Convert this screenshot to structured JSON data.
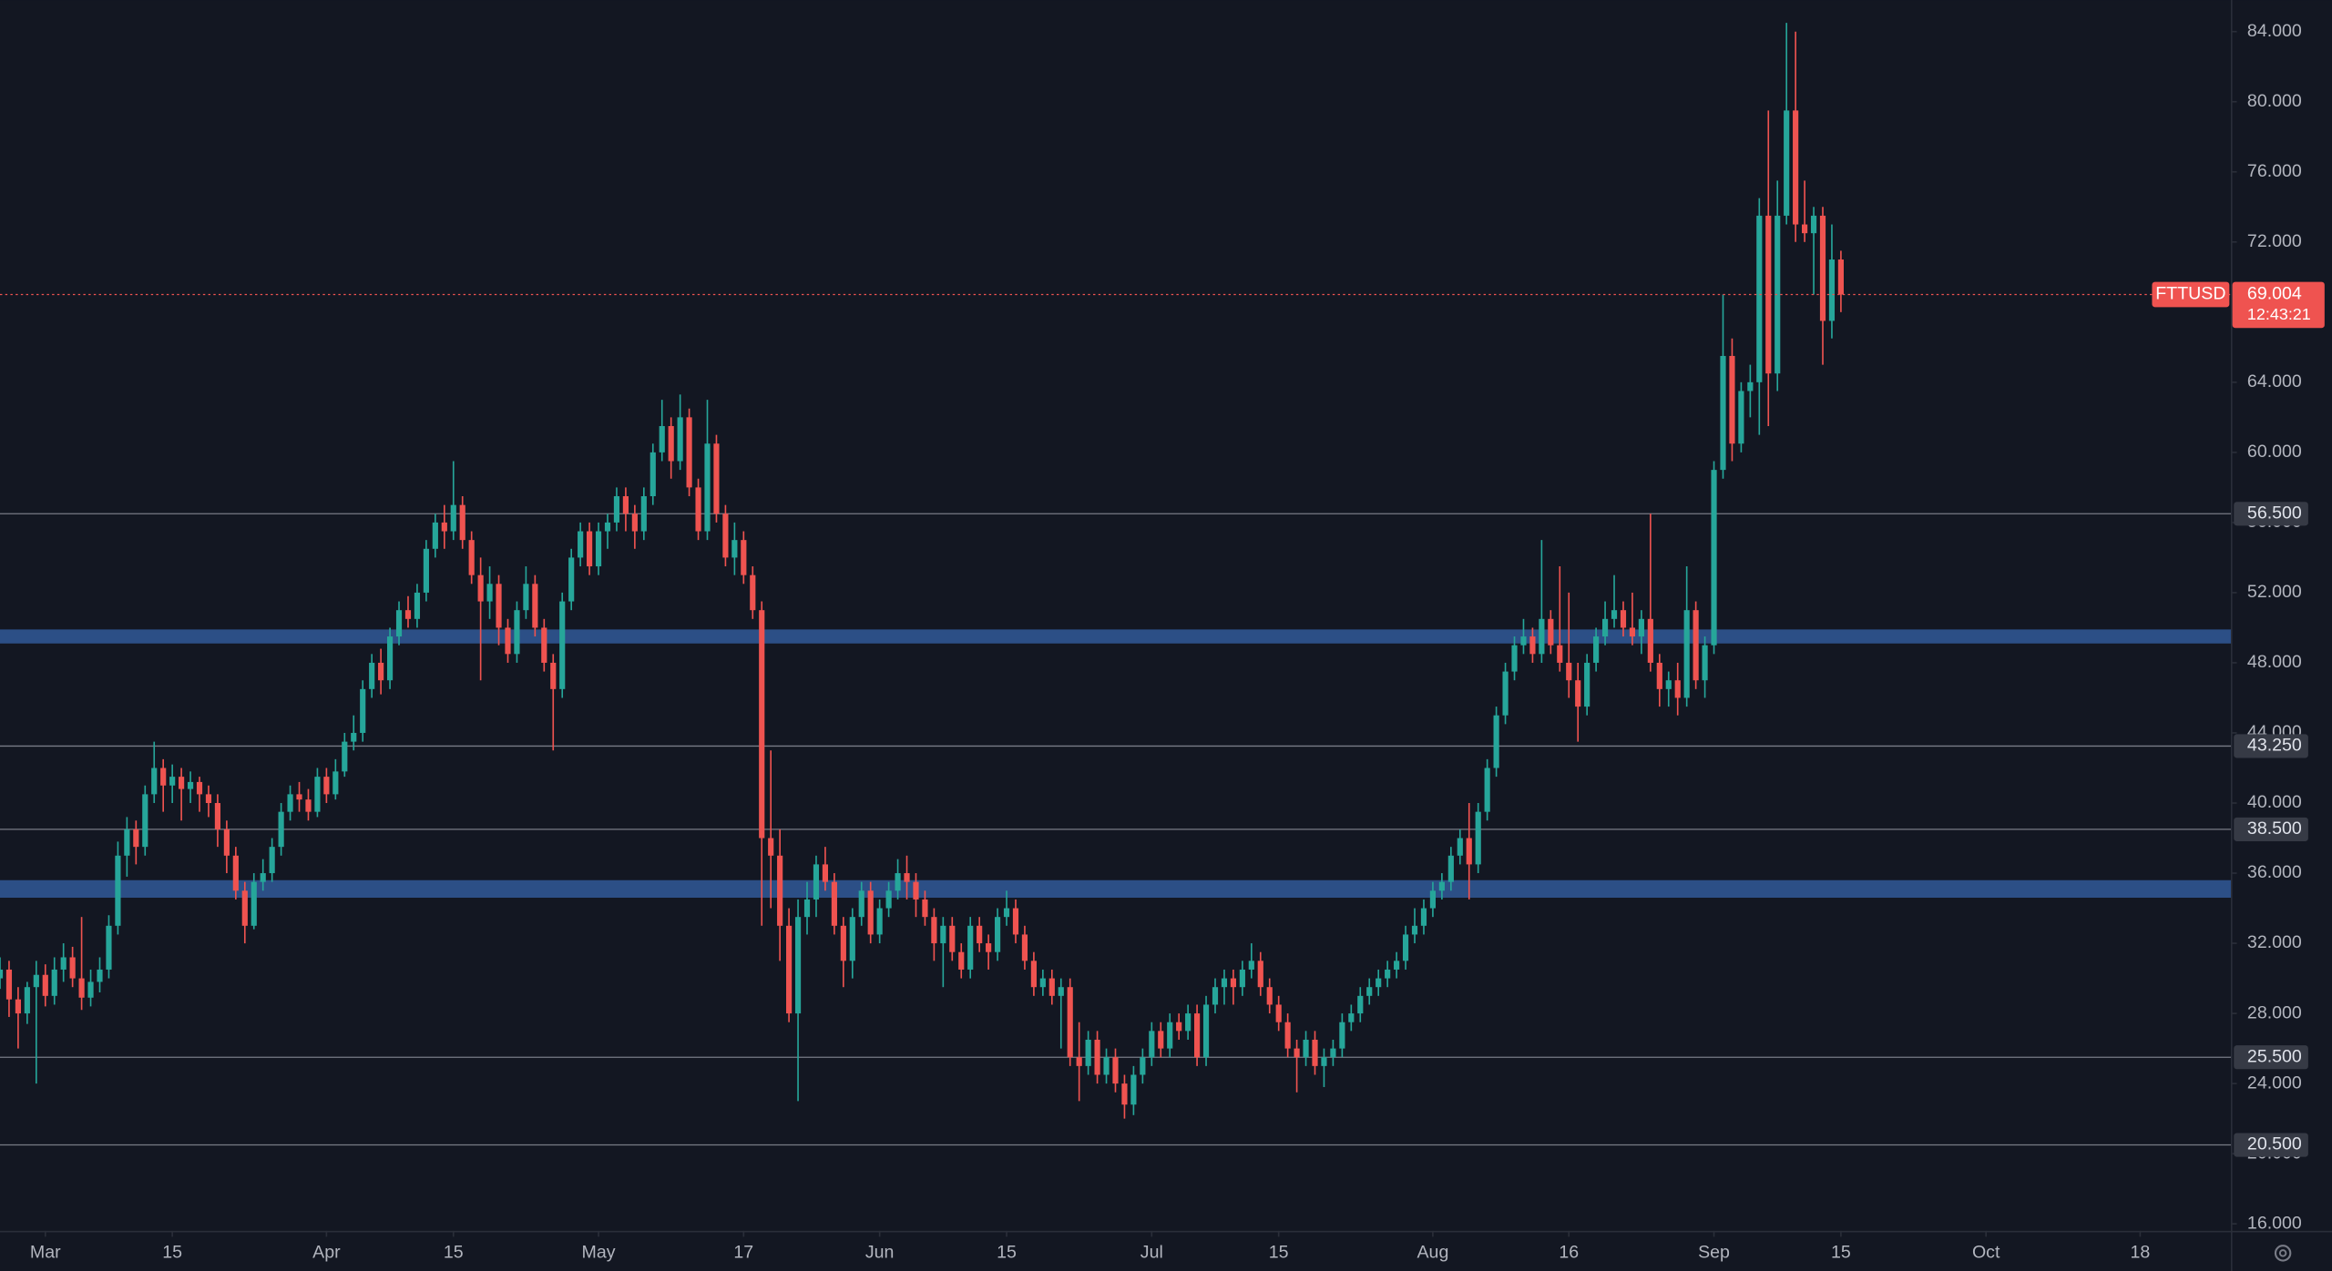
{
  "chart_data": {
    "type": "candlestick",
    "up_color": "#26a69a",
    "down_color": "#ef5350",
    "xlim": [
      -5,
      241
    ],
    "ylim": [
      15.6,
      85.8
    ],
    "xticks": [
      {
        "value": 0,
        "label": "Mar"
      },
      {
        "value": 14,
        "label": "15"
      },
      {
        "value": 31,
        "label": "Apr"
      },
      {
        "value": 45,
        "label": "15"
      },
      {
        "value": 61,
        "label": "May"
      },
      {
        "value": 77,
        "label": "17"
      },
      {
        "value": 92,
        "label": "Jun"
      },
      {
        "value": 106,
        "label": "15"
      },
      {
        "value": 122,
        "label": "Jul"
      },
      {
        "value": 136,
        "label": "15"
      },
      {
        "value": 153,
        "label": "Aug"
      },
      {
        "value": 168,
        "label": "16"
      },
      {
        "value": 184,
        "label": "Sep"
      },
      {
        "value": 198,
        "label": "15"
      },
      {
        "value": 214,
        "label": "Oct"
      },
      {
        "value": 231,
        "label": "18"
      }
    ],
    "yticks": [
      {
        "value": 16,
        "label": "16.000"
      },
      {
        "value": 20,
        "label": "20.000"
      },
      {
        "value": 24,
        "label": "24.000"
      },
      {
        "value": 28,
        "label": "28.000"
      },
      {
        "value": 32,
        "label": "32.000"
      },
      {
        "value": 36,
        "label": "36.000"
      },
      {
        "value": 40,
        "label": "40.000"
      },
      {
        "value": 44,
        "label": "44.000"
      },
      {
        "value": 48,
        "label": "48.000"
      },
      {
        "value": 52,
        "label": "52.000"
      },
      {
        "value": 56,
        "label": "56.000"
      },
      {
        "value": 60,
        "label": "60.000"
      },
      {
        "value": 64,
        "label": "64.000"
      },
      {
        "value": 68,
        "label": "68.000"
      },
      {
        "value": 72,
        "label": "72.000"
      },
      {
        "value": 76,
        "label": "76.000"
      },
      {
        "value": 80,
        "label": "80.000"
      },
      {
        "value": 84,
        "label": "84.000"
      }
    ],
    "levels": [
      56.5,
      43.25,
      38.5,
      25.5,
      20.5
    ],
    "level_labels": [
      "56.500",
      "43.250",
      "38.500",
      "25.500",
      "20.500"
    ],
    "level_color": "#787b86",
    "zones": [
      [
        49.1,
        49.9
      ],
      [
        34.6,
        35.6
      ]
    ],
    "zone_color": "#2c4f86",
    "last_price": {
      "symbol": "FTTUSD",
      "value": 69.004,
      "countdown": "12:43:21",
      "color": "#ef5350"
    },
    "x": [
      -5,
      -4,
      -3,
      -2,
      -1,
      0,
      1,
      2,
      3,
      4,
      5,
      6,
      7,
      8,
      9,
      10,
      11,
      12,
      13,
      14,
      15,
      16,
      17,
      18,
      19,
      20,
      21,
      22,
      23,
      24,
      25,
      26,
      27,
      28,
      29,
      30,
      31,
      32,
      33,
      34,
      35,
      36,
      37,
      38,
      39,
      40,
      41,
      42,
      43,
      44,
      45,
      46,
      47,
      48,
      49,
      50,
      51,
      52,
      53,
      54,
      55,
      56,
      57,
      58,
      59,
      60,
      61,
      62,
      63,
      64,
      65,
      66,
      67,
      68,
      69,
      70,
      71,
      72,
      73,
      74,
      75,
      76,
      77,
      78,
      79,
      80,
      81,
      82,
      83,
      84,
      85,
      86,
      87,
      88,
      89,
      90,
      91,
      92,
      93,
      94,
      95,
      96,
      97,
      98,
      99,
      100,
      101,
      102,
      103,
      104,
      105,
      106,
      107,
      108,
      109,
      110,
      111,
      112,
      113,
      114,
      115,
      116,
      117,
      118,
      119,
      120,
      121,
      122,
      123,
      124,
      125,
      126,
      127,
      128,
      129,
      130,
      131,
      132,
      133,
      134,
      135,
      136,
      137,
      138,
      139,
      140,
      141,
      142,
      143,
      144,
      145,
      146,
      147,
      148,
      149,
      150,
      151,
      152,
      153,
      154,
      155,
      156,
      157,
      158,
      159,
      160,
      161,
      162,
      163,
      164,
      165,
      166,
      167,
      168,
      169,
      170,
      171,
      172,
      173,
      174,
      175,
      176,
      177,
      178,
      179,
      180,
      181,
      182,
      183,
      184,
      185,
      186,
      187,
      188,
      189,
      190,
      191,
      192,
      193,
      194,
      195,
      196,
      197,
      198
    ],
    "ohlc": [
      [
        30.0,
        31.2,
        29.4,
        30.5
      ],
      [
        30.5,
        31.0,
        27.8,
        28.8
      ],
      [
        28.8,
        29.5,
        26.0,
        28.0
      ],
      [
        28.0,
        29.8,
        27.4,
        29.5
      ],
      [
        29.5,
        31.0,
        24.0,
        30.2
      ],
      [
        30.2,
        30.8,
        28.4,
        29.0
      ],
      [
        29.0,
        31.2,
        28.5,
        30.5
      ],
      [
        30.5,
        32.0,
        29.8,
        31.2
      ],
      [
        31.2,
        31.8,
        29.5,
        30.0
      ],
      [
        30.0,
        33.5,
        28.2,
        28.9
      ],
      [
        28.9,
        30.5,
        28.4,
        29.8
      ],
      [
        29.8,
        31.2,
        29.2,
        30.5
      ],
      [
        30.5,
        33.6,
        30.0,
        33.0
      ],
      [
        33.0,
        37.8,
        32.5,
        37.0
      ],
      [
        37.0,
        39.2,
        35.8,
        38.5
      ],
      [
        38.5,
        39.0,
        36.5,
        37.5
      ],
      [
        37.5,
        41.0,
        37.0,
        40.5
      ],
      [
        40.5,
        43.5,
        40.0,
        42.0
      ],
      [
        42.0,
        42.5,
        39.5,
        41.0
      ],
      [
        41.0,
        42.2,
        40.0,
        41.5
      ],
      [
        41.5,
        42.0,
        39.0,
        40.8
      ],
      [
        40.8,
        41.8,
        40.0,
        41.2
      ],
      [
        41.2,
        41.5,
        39.5,
        40.5
      ],
      [
        40.5,
        41.0,
        39.2,
        40.0
      ],
      [
        40.0,
        40.5,
        37.5,
        38.5
      ],
      [
        38.5,
        39.0,
        36.0,
        37.0
      ],
      [
        37.0,
        37.5,
        34.5,
        35.0
      ],
      [
        35.0,
        35.5,
        32.0,
        33.0
      ],
      [
        33.0,
        36.0,
        32.8,
        35.5
      ],
      [
        35.5,
        36.8,
        35.0,
        36.0
      ],
      [
        36.0,
        38.0,
        35.5,
        37.5
      ],
      [
        37.5,
        40.0,
        37.0,
        39.5
      ],
      [
        39.5,
        41.0,
        39.0,
        40.5
      ],
      [
        40.5,
        41.2,
        39.5,
        40.2
      ],
      [
        40.2,
        40.8,
        39.0,
        39.5
      ],
      [
        39.5,
        42.0,
        39.2,
        41.5
      ],
      [
        41.5,
        42.0,
        40.0,
        40.5
      ],
      [
        40.5,
        42.5,
        40.2,
        41.8
      ],
      [
        41.8,
        44.0,
        41.5,
        43.5
      ],
      [
        43.5,
        45.0,
        43.0,
        44.0
      ],
      [
        44.0,
        47.0,
        43.5,
        46.5
      ],
      [
        46.5,
        48.5,
        46.0,
        48.0
      ],
      [
        48.0,
        48.8,
        46.2,
        47.0
      ],
      [
        47.0,
        50.0,
        46.5,
        49.5
      ],
      [
        49.5,
        51.5,
        49.0,
        51.0
      ],
      [
        51.0,
        51.8,
        50.0,
        50.5
      ],
      [
        50.5,
        52.5,
        50.0,
        52.0
      ],
      [
        52.0,
        55.0,
        51.5,
        54.5
      ],
      [
        54.5,
        56.5,
        54.0,
        56.0
      ],
      [
        56.0,
        57.0,
        54.5,
        55.5
      ],
      [
        55.5,
        59.5,
        55.0,
        57.0
      ],
      [
        57.0,
        57.5,
        54.5,
        55.0
      ],
      [
        55.0,
        55.5,
        52.5,
        53.0
      ],
      [
        53.0,
        54.0,
        47.0,
        51.5
      ],
      [
        51.5,
        53.5,
        50.5,
        52.5
      ],
      [
        52.5,
        53.0,
        49.0,
        50.0
      ],
      [
        50.0,
        50.5,
        48.0,
        48.5
      ],
      [
        48.5,
        51.5,
        48.0,
        51.0
      ],
      [
        51.0,
        53.5,
        50.5,
        52.5
      ],
      [
        52.5,
        53.0,
        49.5,
        50.0
      ],
      [
        50.0,
        50.5,
        47.5,
        48.0
      ],
      [
        48.0,
        48.5,
        43.0,
        46.5
      ],
      [
        46.5,
        52.0,
        46.0,
        51.5
      ],
      [
        51.5,
        54.5,
        51.0,
        54.0
      ],
      [
        54.0,
        56.0,
        53.5,
        55.5
      ],
      [
        55.5,
        56.0,
        53.0,
        53.5
      ],
      [
        53.5,
        56.0,
        53.0,
        55.5
      ],
      [
        55.5,
        56.5,
        54.5,
        56.0
      ],
      [
        56.0,
        58.0,
        55.5,
        57.5
      ],
      [
        57.5,
        58.0,
        55.5,
        56.5
      ],
      [
        56.5,
        57.0,
        54.5,
        55.5
      ],
      [
        55.5,
        58.0,
        55.0,
        57.5
      ],
      [
        57.5,
        60.5,
        57.0,
        60.0
      ],
      [
        60.0,
        63.0,
        59.5,
        61.5
      ],
      [
        61.5,
        62.0,
        58.5,
        59.5
      ],
      [
        59.5,
        63.3,
        59.0,
        62.0
      ],
      [
        62.0,
        62.5,
        57.5,
        58.0
      ],
      [
        58.0,
        58.5,
        55.0,
        55.5
      ],
      [
        55.5,
        63.0,
        55.0,
        60.5
      ],
      [
        60.5,
        61.0,
        56.0,
        56.5
      ],
      [
        56.5,
        57.0,
        53.5,
        54.0
      ],
      [
        54.0,
        56.0,
        53.0,
        55.0
      ],
      [
        55.0,
        55.5,
        52.5,
        53.0
      ],
      [
        53.0,
        53.5,
        50.5,
        51.0
      ],
      [
        51.0,
        51.5,
        33.0,
        38.0
      ],
      [
        38.0,
        43.0,
        34.0,
        37.0
      ],
      [
        37.0,
        38.5,
        31.0,
        33.0
      ],
      [
        33.0,
        34.0,
        27.5,
        28.0
      ],
      [
        28.0,
        34.5,
        23.0,
        33.5
      ],
      [
        33.5,
        35.5,
        32.5,
        34.5
      ],
      [
        34.5,
        37.0,
        33.5,
        36.5
      ],
      [
        36.5,
        37.5,
        35.0,
        35.5
      ],
      [
        35.5,
        36.0,
        32.5,
        33.0
      ],
      [
        33.0,
        33.5,
        29.5,
        31.0
      ],
      [
        31.0,
        34.0,
        30.0,
        33.5
      ],
      [
        33.5,
        35.5,
        33.0,
        35.0
      ],
      [
        35.0,
        35.5,
        32.0,
        32.5
      ],
      [
        32.5,
        34.5,
        32.0,
        34.0
      ],
      [
        34.0,
        35.5,
        33.5,
        35.0
      ],
      [
        35.0,
        36.8,
        34.5,
        36.0
      ],
      [
        36.0,
        37.0,
        34.5,
        35.5
      ],
      [
        35.5,
        36.0,
        33.5,
        34.5
      ],
      [
        34.5,
        35.0,
        33.0,
        33.5
      ],
      [
        33.5,
        34.0,
        31.0,
        32.0
      ],
      [
        32.0,
        33.5,
        29.5,
        33.0
      ],
      [
        33.0,
        33.5,
        31.0,
        31.5
      ],
      [
        31.5,
        32.0,
        30.0,
        30.5
      ],
      [
        30.5,
        33.5,
        30.0,
        33.0
      ],
      [
        33.0,
        33.5,
        31.5,
        32.0
      ],
      [
        32.0,
        32.5,
        30.5,
        31.5
      ],
      [
        31.5,
        34.0,
        31.0,
        33.5
      ],
      [
        33.5,
        35.0,
        33.0,
        34.0
      ],
      [
        34.0,
        34.5,
        32.0,
        32.5
      ],
      [
        32.5,
        33.0,
        30.5,
        31.0
      ],
      [
        31.0,
        31.5,
        29.0,
        29.5
      ],
      [
        29.5,
        30.5,
        29.0,
        30.0
      ],
      [
        30.0,
        30.5,
        28.5,
        29.0
      ],
      [
        29.0,
        30.0,
        26.0,
        29.5
      ],
      [
        29.5,
        30.0,
        25.0,
        25.5
      ],
      [
        25.5,
        27.5,
        23.0,
        25.0
      ],
      [
        25.0,
        27.0,
        24.5,
        26.5
      ],
      [
        26.5,
        27.0,
        24.0,
        24.5
      ],
      [
        24.5,
        26.0,
        24.0,
        25.5
      ],
      [
        25.5,
        26.0,
        23.5,
        24.0
      ],
      [
        24.0,
        24.5,
        22.0,
        22.8
      ],
      [
        22.8,
        25.0,
        22.2,
        24.5
      ],
      [
        24.5,
        26.0,
        24.0,
        25.5
      ],
      [
        25.5,
        27.5,
        25.0,
        27.0
      ],
      [
        27.0,
        27.5,
        25.5,
        26.0
      ],
      [
        26.0,
        28.0,
        25.5,
        27.5
      ],
      [
        27.5,
        28.0,
        26.5,
        27.0
      ],
      [
        27.0,
        28.5,
        26.5,
        28.0
      ],
      [
        28.0,
        28.5,
        25.0,
        25.5
      ],
      [
        25.5,
        29.0,
        25.0,
        28.5
      ],
      [
        28.5,
        30.0,
        28.0,
        29.5
      ],
      [
        29.5,
        30.5,
        28.5,
        30.0
      ],
      [
        30.0,
        30.5,
        28.5,
        29.5
      ],
      [
        29.5,
        31.0,
        29.0,
        30.5
      ],
      [
        30.5,
        32.0,
        30.0,
        31.0
      ],
      [
        31.0,
        31.5,
        29.0,
        29.5
      ],
      [
        29.5,
        30.0,
        28.0,
        28.5
      ],
      [
        28.5,
        29.0,
        27.0,
        27.5
      ],
      [
        27.5,
        28.0,
        25.5,
        26.0
      ],
      [
        26.0,
        26.5,
        23.5,
        25.5
      ],
      [
        25.5,
        27.0,
        25.0,
        26.5
      ],
      [
        26.5,
        27.0,
        24.5,
        25.0
      ],
      [
        25.0,
        26.0,
        23.8,
        25.5
      ],
      [
        25.5,
        26.5,
        25.0,
        26.0
      ],
      [
        26.0,
        28.0,
        25.5,
        27.5
      ],
      [
        27.5,
        28.5,
        27.0,
        28.0
      ],
      [
        28.0,
        29.5,
        27.5,
        29.0
      ],
      [
        29.0,
        30.0,
        28.5,
        29.5
      ],
      [
        29.5,
        30.5,
        29.0,
        30.0
      ],
      [
        30.0,
        31.0,
        29.5,
        30.5
      ],
      [
        30.5,
        31.5,
        30.0,
        31.0
      ],
      [
        31.0,
        33.0,
        30.5,
        32.5
      ],
      [
        32.5,
        34.0,
        32.0,
        33.0
      ],
      [
        33.0,
        34.5,
        32.5,
        34.0
      ],
      [
        34.0,
        35.5,
        33.5,
        35.0
      ],
      [
        35.0,
        36.0,
        34.5,
        35.5
      ],
      [
        35.5,
        37.5,
        35.0,
        37.0
      ],
      [
        37.0,
        38.5,
        36.5,
        38.0
      ],
      [
        38.0,
        40.0,
        34.5,
        36.5
      ],
      [
        36.5,
        40.0,
        36.0,
        39.5
      ],
      [
        39.5,
        42.5,
        39.0,
        42.0
      ],
      [
        42.0,
        45.5,
        41.5,
        45.0
      ],
      [
        45.0,
        48.0,
        44.5,
        47.5
      ],
      [
        47.5,
        49.5,
        47.0,
        49.0
      ],
      [
        49.0,
        50.5,
        48.5,
        49.5
      ],
      [
        49.5,
        50.0,
        48.0,
        48.5
      ],
      [
        48.5,
        55.0,
        48.0,
        50.5
      ],
      [
        50.5,
        51.0,
        48.5,
        49.0
      ],
      [
        49.0,
        53.5,
        47.5,
        48.0
      ],
      [
        48.0,
        52.0,
        46.0,
        47.0
      ],
      [
        47.0,
        48.0,
        43.5,
        45.5
      ],
      [
        45.5,
        48.5,
        45.0,
        48.0
      ],
      [
        48.0,
        50.0,
        47.5,
        49.5
      ],
      [
        49.5,
        51.5,
        49.0,
        50.5
      ],
      [
        50.5,
        53.0,
        50.0,
        51.0
      ],
      [
        51.0,
        51.5,
        49.5,
        50.0
      ],
      [
        50.0,
        52.0,
        49.0,
        49.5
      ],
      [
        49.5,
        51.0,
        48.5,
        50.5
      ],
      [
        50.5,
        56.5,
        47.5,
        48.0
      ],
      [
        48.0,
        48.5,
        45.5,
        46.5
      ],
      [
        46.5,
        47.5,
        45.5,
        47.0
      ],
      [
        47.0,
        48.0,
        45.0,
        46.0
      ],
      [
        46.0,
        53.5,
        45.5,
        51.0
      ],
      [
        51.0,
        51.5,
        46.5,
        47.0
      ],
      [
        47.0,
        49.5,
        46.0,
        49.0
      ],
      [
        49.0,
        59.5,
        48.5,
        59.0
      ],
      [
        59.0,
        69.0,
        58.5,
        65.5
      ],
      [
        65.5,
        66.5,
        59.5,
        60.5
      ],
      [
        60.5,
        64.0,
        60.0,
        63.5
      ],
      [
        63.5,
        65.0,
        62.0,
        64.0
      ],
      [
        64.0,
        74.5,
        61.0,
        73.5
      ],
      [
        73.5,
        79.5,
        61.5,
        64.5
      ],
      [
        64.5,
        75.5,
        63.5,
        73.5
      ],
      [
        73.5,
        84.5,
        73.0,
        79.5
      ],
      [
        79.5,
        84.0,
        72.0,
        73.0
      ],
      [
        73.0,
        75.5,
        72.0,
        72.5
      ],
      [
        72.5,
        74.0,
        69.0,
        73.5
      ],
      [
        73.5,
        74.0,
        65.0,
        67.5
      ],
      [
        67.5,
        73.0,
        66.5,
        71.0
      ],
      [
        71.0,
        71.5,
        68.0,
        69.004
      ]
    ]
  }
}
